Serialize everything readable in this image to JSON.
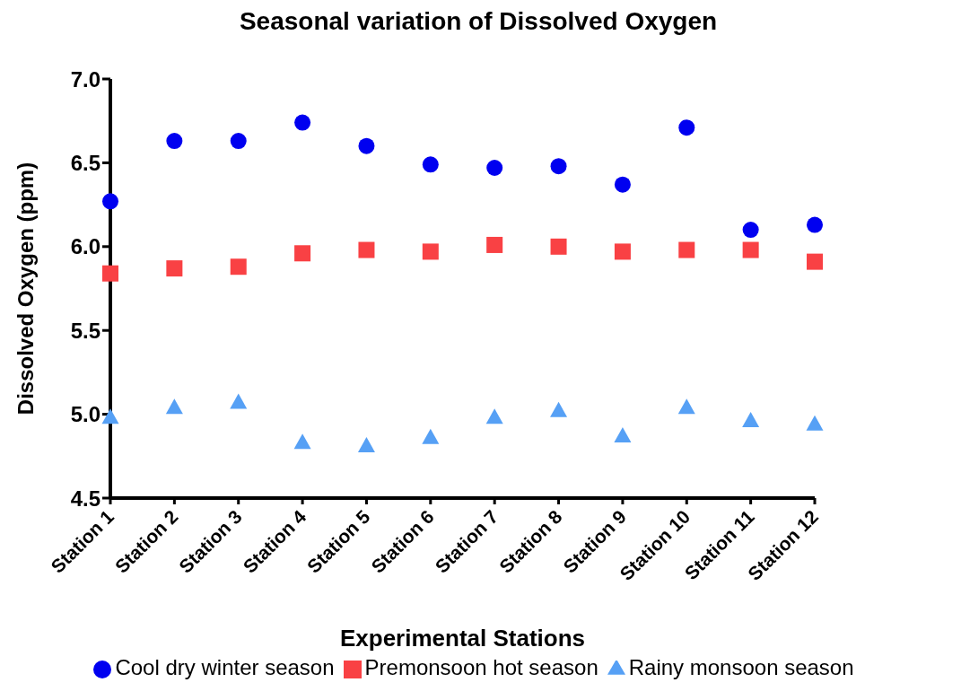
{
  "chart_data": {
    "type": "scatter",
    "title": "Seasonal variation of Dissolved Oxygen",
    "xlabel": "Experimental Stations",
    "ylabel": "Dissolved Oxygen (ppm)",
    "categories": [
      "Station 1",
      "Station 2",
      "Station 3",
      "Station 4",
      "Station 5",
      "Station 6",
      "Station 7",
      "Station 8",
      "Station 9",
      "Station 10",
      "Station 11",
      "Station 12"
    ],
    "series": [
      {
        "name": "Cool dry winter season",
        "color": "#0000f0",
        "marker": "circle",
        "values": [
          6.27,
          6.63,
          6.63,
          6.74,
          6.6,
          6.49,
          6.47,
          6.48,
          6.37,
          6.71,
          6.1,
          6.13
        ]
      },
      {
        "name": "Premonsoon hot season",
        "color": "#f94144",
        "marker": "square",
        "values": [
          5.84,
          5.87,
          5.88,
          5.96,
          5.98,
          5.97,
          6.01,
          6.0,
          5.97,
          5.98,
          5.98,
          5.91
        ]
      },
      {
        "name": "Rainy monsoon season",
        "color": "#56a0f5",
        "marker": "triangle",
        "values": [
          4.98,
          5.04,
          5.07,
          4.83,
          4.81,
          4.86,
          4.98,
          5.02,
          4.87,
          5.04,
          4.96,
          4.94
        ]
      }
    ],
    "ylim": [
      4.5,
      7.0
    ],
    "yticks": [
      {
        "value": 4.5,
        "label": "4.5"
      },
      {
        "value": 5,
        "label": "5.0"
      },
      {
        "value": 5.5,
        "label": "5.5"
      },
      {
        "value": 6,
        "label": "6.0"
      },
      {
        "value": 6.5,
        "label": "6.5"
      },
      {
        "value": 7,
        "label": "7.0"
      }
    ],
    "grid": false,
    "legend": "bottom"
  }
}
